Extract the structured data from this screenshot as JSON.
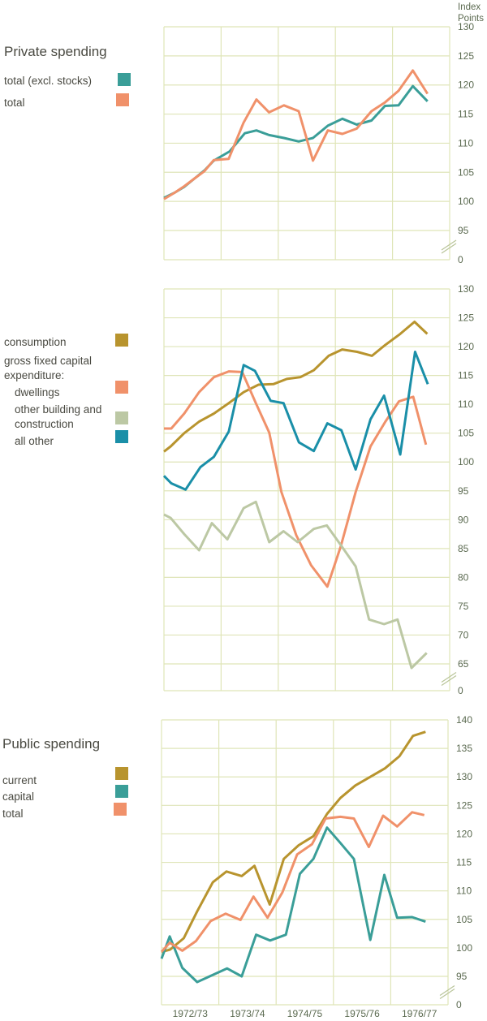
{
  "axis_unit": [
    "Index",
    "Points"
  ],
  "colors": {
    "teal": "#3a9e98",
    "orange": "#f0916a",
    "gold": "#b8942e",
    "sage": "#bcc8a4",
    "blue": "#1a8fa8",
    "grid": "#dfe5b8"
  },
  "chart_data": [
    {
      "type": "line",
      "title": "Private spending",
      "ylabel": "Index Points",
      "xlim": [
        0,
        20
      ],
      "ylim": [
        95,
        130
      ],
      "y_break": true,
      "y_ticks": [
        "130",
        "125",
        "120",
        "115",
        "110",
        "105",
        "100",
        "95",
        "0"
      ],
      "legend": [
        "total (excl. stocks)",
        "total"
      ],
      "series": [
        {
          "name": "total (excl. stocks)",
          "color": "#3a9e98",
          "x": [
            0,
            0.75,
            1.42,
            2.17,
            2.83,
            3.49,
            4.6,
            5.66,
            6.47,
            7.36,
            8.4,
            9.43,
            10.43,
            11.47,
            12.49,
            13.49,
            14.53,
            15.47,
            16.42,
            17.42,
            18.45
          ],
          "y": [
            100.6,
            101.5,
            102.5,
            104,
            105.3,
            107,
            108.6,
            111.7,
            112.2,
            111.4,
            110.9,
            110.3,
            110.9,
            113,
            114.2,
            113.2,
            113.9,
            116.4,
            116.5,
            119.8,
            117.2
          ]
        },
        {
          "name": "total",
          "color": "#f0916a",
          "x": [
            0,
            0.75,
            1.42,
            2.17,
            2.83,
            3.49,
            4.53,
            5.57,
            6.47,
            7.36,
            8.4,
            9.43,
            10.43,
            11.47,
            12.49,
            13.49,
            14.53,
            15.47,
            16.42,
            17.42,
            18.45
          ],
          "y": [
            100.4,
            101.5,
            102.6,
            104,
            105.2,
            107.1,
            107.3,
            113.5,
            117.5,
            115.3,
            116.5,
            115.5,
            107,
            112.2,
            111.6,
            112.5,
            115.5,
            117,
            119,
            122.5,
            118.5
          ]
        }
      ]
    },
    {
      "type": "line",
      "title": "",
      "xlim": [
        0,
        20
      ],
      "ylim": [
        65,
        130
      ],
      "y_break": true,
      "y_ticks": [
        "130",
        "125",
        "120",
        "115",
        "110",
        "105",
        "100",
        "95",
        "90",
        "85",
        "80",
        "75",
        "70",
        "65",
        "0"
      ],
      "legend": [
        "consumption",
        "gross fixed capital",
        "expenditure:",
        "dwellings",
        "other building and",
        "construction",
        "all other"
      ],
      "series": [
        {
          "name": "consumption",
          "color": "#b8942e",
          "x": [
            0,
            0.47,
            1.42,
            2.46,
            3.5,
            4.54,
            5.58,
            6.62,
            7.66,
            8.6,
            9.55,
            10.49,
            11.53,
            12.48,
            13.52,
            14.56,
            15.5,
            16.54,
            17.54,
            18.43
          ],
          "y": [
            101.8,
            102.7,
            105,
            107,
            108.4,
            110.2,
            112.1,
            113.4,
            113.5,
            114.4,
            114.7,
            115.9,
            118.4,
            119.5,
            119.1,
            118.4,
            120.3,
            122.2,
            124.3,
            122.2
          ]
        },
        {
          "name": "dwellings",
          "color": "#f0916a",
          "x": [
            0,
            0.51,
            1.42,
            2.46,
            3.5,
            4.54,
            5.48,
            6.43,
            7.37,
            8.22,
            9.26,
            10.3,
            11.44,
            12.38,
            13.42,
            14.46,
            15.5,
            16.45,
            17.45,
            18.34
          ],
          "y": [
            105.8,
            105.8,
            108.4,
            112.1,
            114.7,
            115.7,
            115.6,
            110.2,
            105.1,
            94.8,
            87.3,
            82.1,
            78.4,
            85.4,
            94.8,
            102.7,
            107,
            110.5,
            111.3,
            103
          ]
        },
        {
          "name": "other building and construction",
          "color": "#bcc8a4",
          "x": [
            0,
            0.47,
            1.42,
            2.46,
            3.35,
            4.44,
            5.58,
            6.43,
            7.37,
            8.37,
            9.36,
            10.49,
            11.4,
            12.38,
            13.42,
            14.36,
            15.41,
            16.35,
            17.33,
            18.39
          ],
          "y": [
            90.9,
            90.3,
            87.5,
            84.7,
            89.4,
            86.6,
            92,
            93.1,
            86.1,
            88,
            86.1,
            88.4,
            89,
            85.6,
            81.9,
            72.7,
            71.9,
            72.7,
            64.3,
            66.9
          ]
        },
        {
          "name": "all other",
          "color": "#1a8fa8",
          "x": [
            0,
            0.51,
            1.51,
            2.55,
            3.5,
            4.54,
            5.58,
            6.37,
            7.47,
            8.37,
            9.45,
            10.49,
            11.44,
            12.42,
            13.42,
            14.46,
            15.41,
            16.54,
            17.58,
            18.47
          ],
          "y": [
            97.6,
            96.3,
            95.2,
            99.1,
            100.9,
            105.3,
            116.8,
            115.8,
            110.6,
            110.2,
            103.4,
            101.9,
            106.7,
            105.5,
            98.7,
            107.4,
            111.5,
            101.3,
            119.1,
            113.5
          ]
        }
      ]
    },
    {
      "type": "line",
      "title": "Public spending",
      "xlim": [
        0,
        20
      ],
      "ylim": [
        95,
        140
      ],
      "y_break": true,
      "y_ticks": [
        "140",
        "135",
        "130",
        "125",
        "120",
        "115",
        "110",
        "105",
        "100",
        "95",
        "0"
      ],
      "x_ticks": [
        "1972/73",
        "1973/74",
        "1974/75",
        "1975/76",
        "1976/77"
      ],
      "legend": [
        "current",
        "capital",
        "total"
      ],
      "series": [
        {
          "name": "current",
          "color": "#b8942e",
          "x": [
            0,
            0.6,
            1.55,
            2.49,
            3.58,
            4.53,
            5.6,
            6.49,
            7.55,
            8.53,
            9.57,
            10.6,
            11.55,
            12.49,
            13.53,
            14.57,
            15.6,
            16.6,
            17.55,
            18.43
          ],
          "y": [
            99.3,
            99.7,
            101.7,
            106.4,
            111.5,
            113.4,
            112.6,
            114.4,
            107.6,
            115.6,
            118,
            119.6,
            123.5,
            126.3,
            128.5,
            130,
            131.5,
            133.6,
            137.2,
            137.9
          ]
        },
        {
          "name": "capital",
          "color": "#3a9e98",
          "x": [
            0,
            0.57,
            1.45,
            2.49,
            3.53,
            4.57,
            5.6,
            6.6,
            7.58,
            8.68,
            9.66,
            10.6,
            11.55,
            12.49,
            13.43,
            14.57,
            15.55,
            16.45,
            17.49,
            18.43
          ],
          "y": [
            98.1,
            102,
            96.5,
            94,
            95.2,
            96.4,
            95,
            102.3,
            101.3,
            102.3,
            113,
            115.6,
            121.1,
            118.4,
            115.6,
            101.4,
            112.8,
            105.3,
            105.4,
            104.6
          ]
        },
        {
          "name": "total",
          "color": "#f0916a",
          "x": [
            0,
            0.57,
            1.45,
            2.4,
            3.43,
            4.47,
            5.51,
            6.42,
            7.4,
            8.43,
            9.47,
            10.51,
            11.45,
            12.49,
            13.43,
            14.47,
            15.47,
            16.45,
            17.49,
            18.34
          ],
          "y": [
            99.3,
            100.9,
            99.5,
            101.2,
            104.7,
            106,
            104.9,
            109,
            105.3,
            109.7,
            116.4,
            118.2,
            122.7,
            123,
            122.7,
            117.7,
            123.2,
            121.3,
            123.8,
            123.3
          ]
        }
      ]
    }
  ]
}
